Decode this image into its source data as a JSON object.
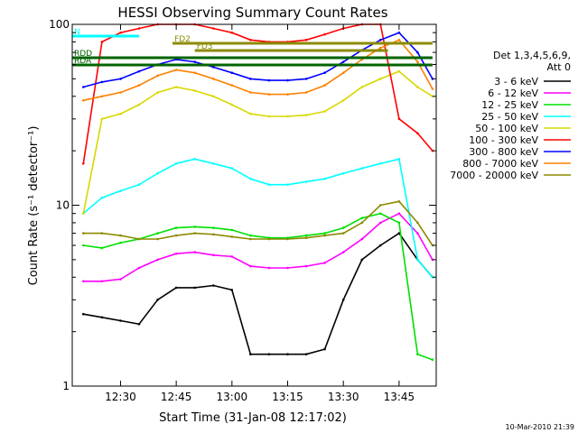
{
  "chart_data": {
    "type": "line",
    "title": "HESSI Observing Summary Count Rates",
    "xlabel": "Start Time (31-Jan-08 12:17:02)",
    "ylabel": "Count Rate (s⁻¹ detector⁻¹)",
    "y_scale": "log",
    "ylim": [
      1,
      100
    ],
    "xlim_minutes_after_start": [
      0,
      98
    ],
    "x_ticks": [
      "12:30",
      "12:45",
      "13:00",
      "13:15",
      "13:30",
      "13:45"
    ],
    "y_ticks": [
      "1",
      "10",
      "100"
    ],
    "legend_header": [
      "Det 1,3,4,5,6,9,",
      "Att 0"
    ],
    "legend_placement": "right",
    "x": [
      "12:20",
      "12:25",
      "12:30",
      "12:35",
      "12:40",
      "12:45",
      "12:50",
      "12:55",
      "13:00",
      "13:05",
      "13:10",
      "13:15",
      "13:20",
      "13:25",
      "13:30",
      "13:35",
      "13:40",
      "13:45",
      "13:50",
      "13:54"
    ],
    "series": [
      {
        "name": "3 - 6 keV",
        "color": "#000000",
        "values": [
          2.5,
          2.4,
          2.3,
          2.2,
          3.0,
          3.5,
          3.5,
          3.6,
          3.4,
          1.5,
          1.5,
          1.5,
          1.5,
          1.6,
          3.0,
          5.0,
          6.0,
          7.0,
          5.0,
          4.0
        ]
      },
      {
        "name": "6 - 12 keV",
        "color": "#ff00ff",
        "values": [
          3.8,
          3.8,
          3.9,
          4.5,
          5.0,
          5.4,
          5.5,
          5.3,
          5.2,
          4.6,
          4.5,
          4.5,
          4.6,
          4.8,
          5.5,
          6.5,
          8.0,
          9.0,
          7.0,
          5.0
        ]
      },
      {
        "name": "12 - 25 keV",
        "color": "#00e000",
        "values": [
          6.0,
          5.8,
          6.2,
          6.5,
          7.0,
          7.5,
          7.6,
          7.5,
          7.3,
          6.8,
          6.6,
          6.6,
          6.8,
          7.0,
          7.5,
          8.5,
          9.0,
          8.0,
          1.5,
          1.4
        ]
      },
      {
        "name": "25 - 50 keV",
        "color": "#00ffff",
        "values": [
          9.0,
          11.0,
          12.0,
          13.0,
          15.0,
          17.0,
          18.0,
          17.0,
          16.0,
          14.0,
          13.0,
          13.0,
          13.5,
          14.0,
          15.0,
          16.0,
          17.0,
          18.0,
          5.0,
          4.0
        ]
      },
      {
        "name": "50 - 100 keV",
        "color": "#d8d800",
        "values": [
          9.0,
          30.0,
          32.0,
          36.0,
          42.0,
          45.0,
          43.0,
          40.0,
          36.0,
          32.0,
          31.0,
          31.0,
          31.5,
          33.0,
          38.0,
          45.0,
          50.0,
          55.0,
          45.0,
          40.0
        ]
      },
      {
        "name": "100 - 300 keV",
        "color": "#ff0000",
        "values": [
          17.0,
          80.0,
          90.0,
          95.0,
          100.0,
          100.0,
          100.0,
          95.0,
          90.0,
          82.0,
          80.0,
          80.0,
          82.0,
          88.0,
          95.0,
          100.0,
          100.0,
          30.0,
          25.0,
          20.0
        ]
      },
      {
        "name": "300 - 800 keV",
        "color": "#0000ff",
        "values": [
          45.0,
          48.0,
          50.0,
          55.0,
          60.0,
          64.0,
          62.0,
          58.0,
          54.0,
          50.0,
          49.0,
          49.0,
          50.0,
          54.0,
          62.0,
          72.0,
          82.0,
          90.0,
          70.0,
          50.0
        ]
      },
      {
        "name": "800 - 7000 keV",
        "color": "#ff8000",
        "values": [
          38.0,
          40.0,
          42.0,
          46.0,
          52.0,
          56.0,
          54.0,
          50.0,
          46.0,
          42.0,
          41.0,
          41.0,
          42.0,
          46.0,
          54.0,
          64.0,
          74.0,
          82.0,
          62.0,
          44.0
        ]
      },
      {
        "name": "7000 - 20000 keV",
        "color": "#8b8b00",
        "values": [
          7.0,
          7.0,
          6.8,
          6.5,
          6.5,
          6.8,
          7.0,
          6.9,
          6.7,
          6.5,
          6.5,
          6.5,
          6.6,
          6.8,
          7.0,
          8.0,
          10.0,
          10.5,
          8.0,
          6.0
        ]
      }
    ],
    "flag_bars": [
      {
        "label": "N",
        "color": "#00ffff",
        "from": "12:17",
        "to": "12:35"
      },
      {
        "label": "FD2",
        "color": "#8b8b00",
        "from": "12:44",
        "to": "13:54"
      },
      {
        "label": "FD3",
        "color": "#8b8b00",
        "from": "12:50",
        "to": "13:42"
      },
      {
        "label": "RDD",
        "color": "#006400",
        "from": "12:17",
        "to": "13:54"
      },
      {
        "label": "RDA",
        "color": "#006400",
        "from": "12:17",
        "to": "13:54"
      }
    ],
    "footer_date": "10-Mar-2010 21:39"
  }
}
